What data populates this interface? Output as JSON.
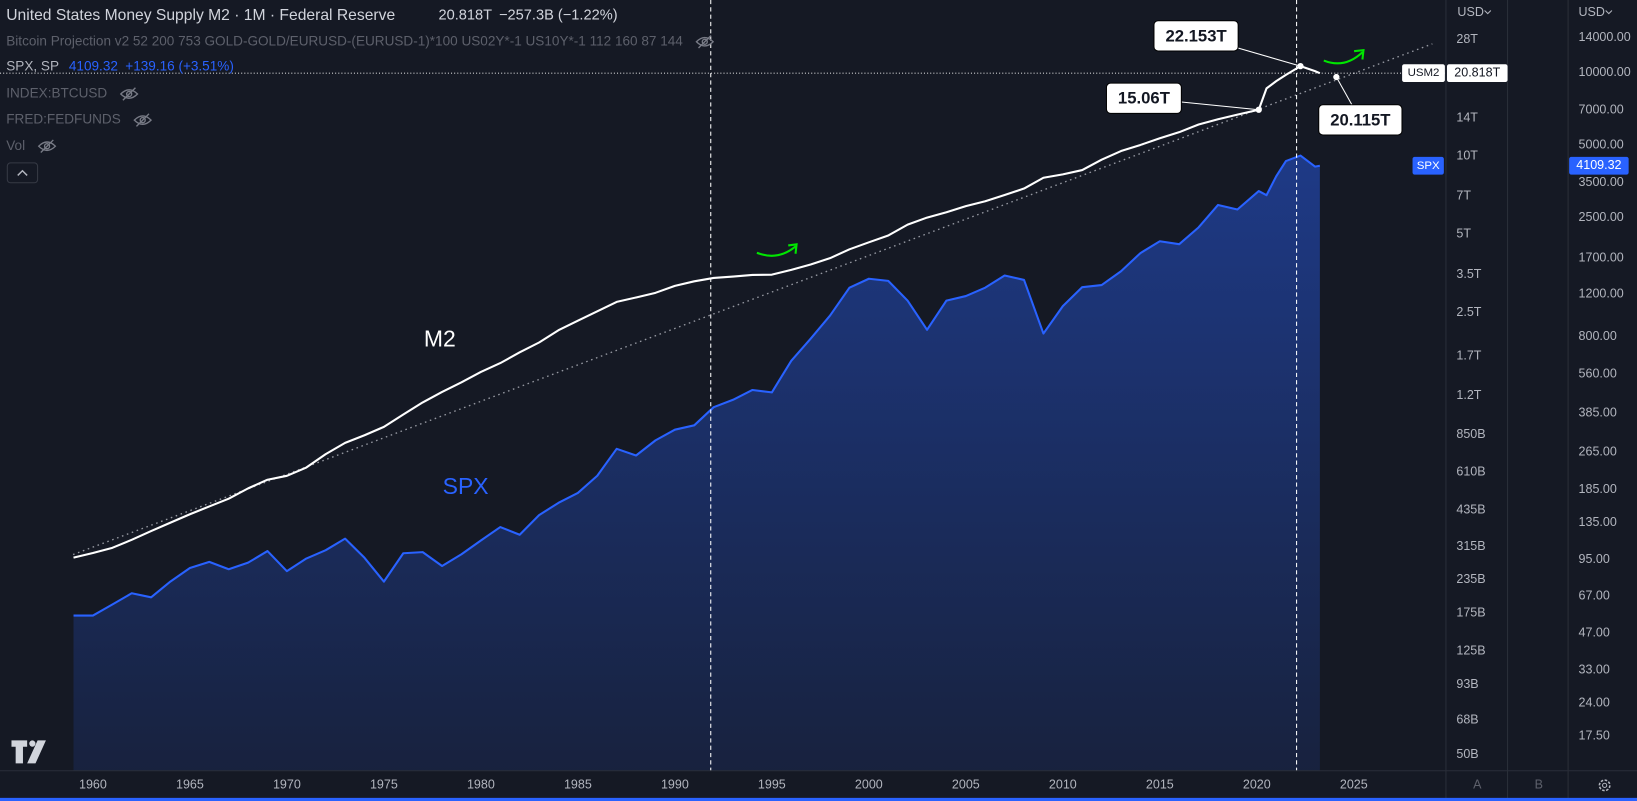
{
  "header": {
    "title": "United States Money Supply M2 · 1M · Federal Reserve",
    "last": "20.818T",
    "change": "−257.3B (−1.22%)"
  },
  "legend_rows": [
    {
      "name": "Bitcoin Projection v2 52 200 753 GOLD-GOLD/EURUSD-(EURUSD-1)*100 US02Y*-1 US10Y*-1 112 160 87 144"
    },
    {
      "name": "SPX, SP",
      "last": "4109.32",
      "change": "+139.16 (+3.51%)"
    },
    {
      "name": "INDEX:BTCUSD"
    },
    {
      "name": "FRED:FEDFUNDS"
    },
    {
      "name": "Vol"
    }
  ],
  "axis_currency": [
    "USD",
    "USD"
  ],
  "scale_buttons": [
    "A",
    "B"
  ],
  "chart_data": {
    "type": "line",
    "x": [
      1959,
      1960,
      1961,
      1962,
      1963,
      1964,
      1965,
      1966,
      1967,
      1968,
      1969,
      1970,
      1971,
      1972,
      1973,
      1974,
      1975,
      1976,
      1977,
      1978,
      1979,
      1980,
      1981,
      1982,
      1983,
      1984,
      1985,
      1986,
      1987,
      1988,
      1989,
      1990,
      1991,
      1992,
      1993,
      1994,
      1995,
      1996,
      1997,
      1998,
      1999,
      2000,
      2001,
      2002,
      2003,
      2004,
      2005,
      2006,
      2007,
      2008,
      2009,
      2010,
      2011,
      2012,
      2013,
      2014,
      2015,
      2016,
      2017,
      2018,
      2019,
      2020.1,
      2020.5,
      2021,
      2021.5,
      2022.25,
      2023,
      2023.25
    ],
    "series": [
      {
        "name": "M2",
        "color": "#ffffff",
        "values": [
          286,
          298,
          312,
          335,
          362,
          390,
          420,
          450,
          482,
          528,
          570,
          590,
          635,
          715,
          790,
          845,
          910,
          1015,
          1130,
          1240,
          1350,
          1480,
          1600,
          1760,
          1920,
          2140,
          2330,
          2530,
          2750,
          2860,
          2980,
          3170,
          3300,
          3400,
          3440,
          3490,
          3500,
          3650,
          3830,
          4050,
          4380,
          4660,
          4950,
          5450,
          5800,
          6080,
          6420,
          6700,
          7080,
          7500,
          8250,
          8500,
          8830,
          9680,
          10450,
          11030,
          11700,
          12350,
          13220,
          13850,
          14430,
          15060,
          18200,
          19400,
          20500,
          22153,
          21200,
          20818
        ]
      },
      {
        "name": "SPX",
        "color": "#2962ff",
        "axis": "y2",
        "area": true,
        "values": [
          55.6,
          55.6,
          61.8,
          68.8,
          66.2,
          77,
          87.6,
          92.9,
          86.6,
          92.2,
          103,
          85,
          95.9,
          103.9,
          116,
          96.6,
          76.9,
          100.9,
          102,
          89.3,
          99.9,
          114,
          129.6,
          120.4,
          145.3,
          163.4,
          179.6,
          211.8,
          274,
          257,
          297,
          329,
          343,
          408,
          438,
          481,
          470,
          636,
          786,
          980,
          1280,
          1394,
          1366,
          1130,
          855,
          1131,
          1181,
          1280,
          1438,
          1378,
          825,
          1073,
          1286,
          1312,
          1498,
          1782,
          1995,
          1940,
          2279,
          2823,
          2704,
          3225,
          3100,
          3714,
          4297,
          4530,
          4076,
          4109.32
        ]
      }
    ],
    "xlim": [
      1955.21,
      2029.75
    ],
    "xticks": [
      1960,
      1965,
      1970,
      1975,
      1980,
      1985,
      1990,
      1995,
      2000,
      2005,
      2010,
      2015,
      2020,
      2025
    ],
    "ylog": true,
    "ylim": [
      43.4,
      39780
    ],
    "yticks": [
      {
        "value": 28000,
        "label": "28T"
      },
      {
        "value": 14000,
        "label": "14T"
      },
      {
        "value": 10000,
        "label": "10T"
      },
      {
        "value": 7000,
        "label": "7T"
      },
      {
        "value": 5000,
        "label": "5T"
      },
      {
        "value": 3500,
        "label": "3.5T"
      },
      {
        "value": 2500,
        "label": "2.5T"
      },
      {
        "value": 1700,
        "label": "1.7T"
      },
      {
        "value": 1200,
        "label": "1.2T"
      },
      {
        "value": 850,
        "label": "850B"
      },
      {
        "value": 610,
        "label": "610B"
      },
      {
        "value": 435,
        "label": "435B"
      },
      {
        "value": 315,
        "label": "315B"
      },
      {
        "value": 235,
        "label": "235B"
      },
      {
        "value": 175,
        "label": "175B"
      },
      {
        "value": 125,
        "label": "125B"
      },
      {
        "value": 93,
        "label": "93B"
      },
      {
        "value": 68,
        "label": "68B"
      },
      {
        "value": 50,
        "label": "50B"
      }
    ],
    "y2log": true,
    "y2lim": [
      12.6,
      20060
    ],
    "y2ticks": [
      {
        "value": 14000,
        "label": "14000.00"
      },
      {
        "value": 10000,
        "label": "10000.00"
      },
      {
        "value": 7000,
        "label": "7000.00"
      },
      {
        "value": 5000,
        "label": "5000.00"
      },
      {
        "value": 3500,
        "label": "3500.00"
      },
      {
        "value": 2500,
        "label": "2500.00"
      },
      {
        "value": 1700,
        "label": "1700.00"
      },
      {
        "value": 1200,
        "label": "1200.00"
      },
      {
        "value": 800,
        "label": "800.00"
      },
      {
        "value": 560,
        "label": "560.00"
      },
      {
        "value": 385,
        "label": "385.00"
      },
      {
        "value": 265,
        "label": "265.00"
      },
      {
        "value": 185,
        "label": "185.00"
      },
      {
        "value": 135,
        "label": "135.00"
      },
      {
        "value": 95,
        "label": "95.00"
      },
      {
        "value": 67,
        "label": "67.00"
      },
      {
        "value": 47,
        "label": "47.00"
      },
      {
        "value": 33,
        "label": "33.00"
      },
      {
        "value": 24,
        "label": "24.00"
      },
      {
        "value": 17.5,
        "label": "17.50"
      }
    ],
    "grid": false,
    "vertical_lines": [
      1991.85,
      2022.05
    ],
    "annotations": [
      {
        "x": 2022.25,
        "value": 22153,
        "label": "22.153T"
      },
      {
        "x": 2020.1,
        "value": 15060,
        "label": "15.06T"
      },
      {
        "x": 2024.1,
        "value": 20115,
        "label": "20.115T"
      }
    ],
    "price_tags": [
      {
        "name": "USM2",
        "value": 20818,
        "label": "20.818T"
      },
      {
        "axis": "y2",
        "value": 4109.32
      }
    ]
  }
}
